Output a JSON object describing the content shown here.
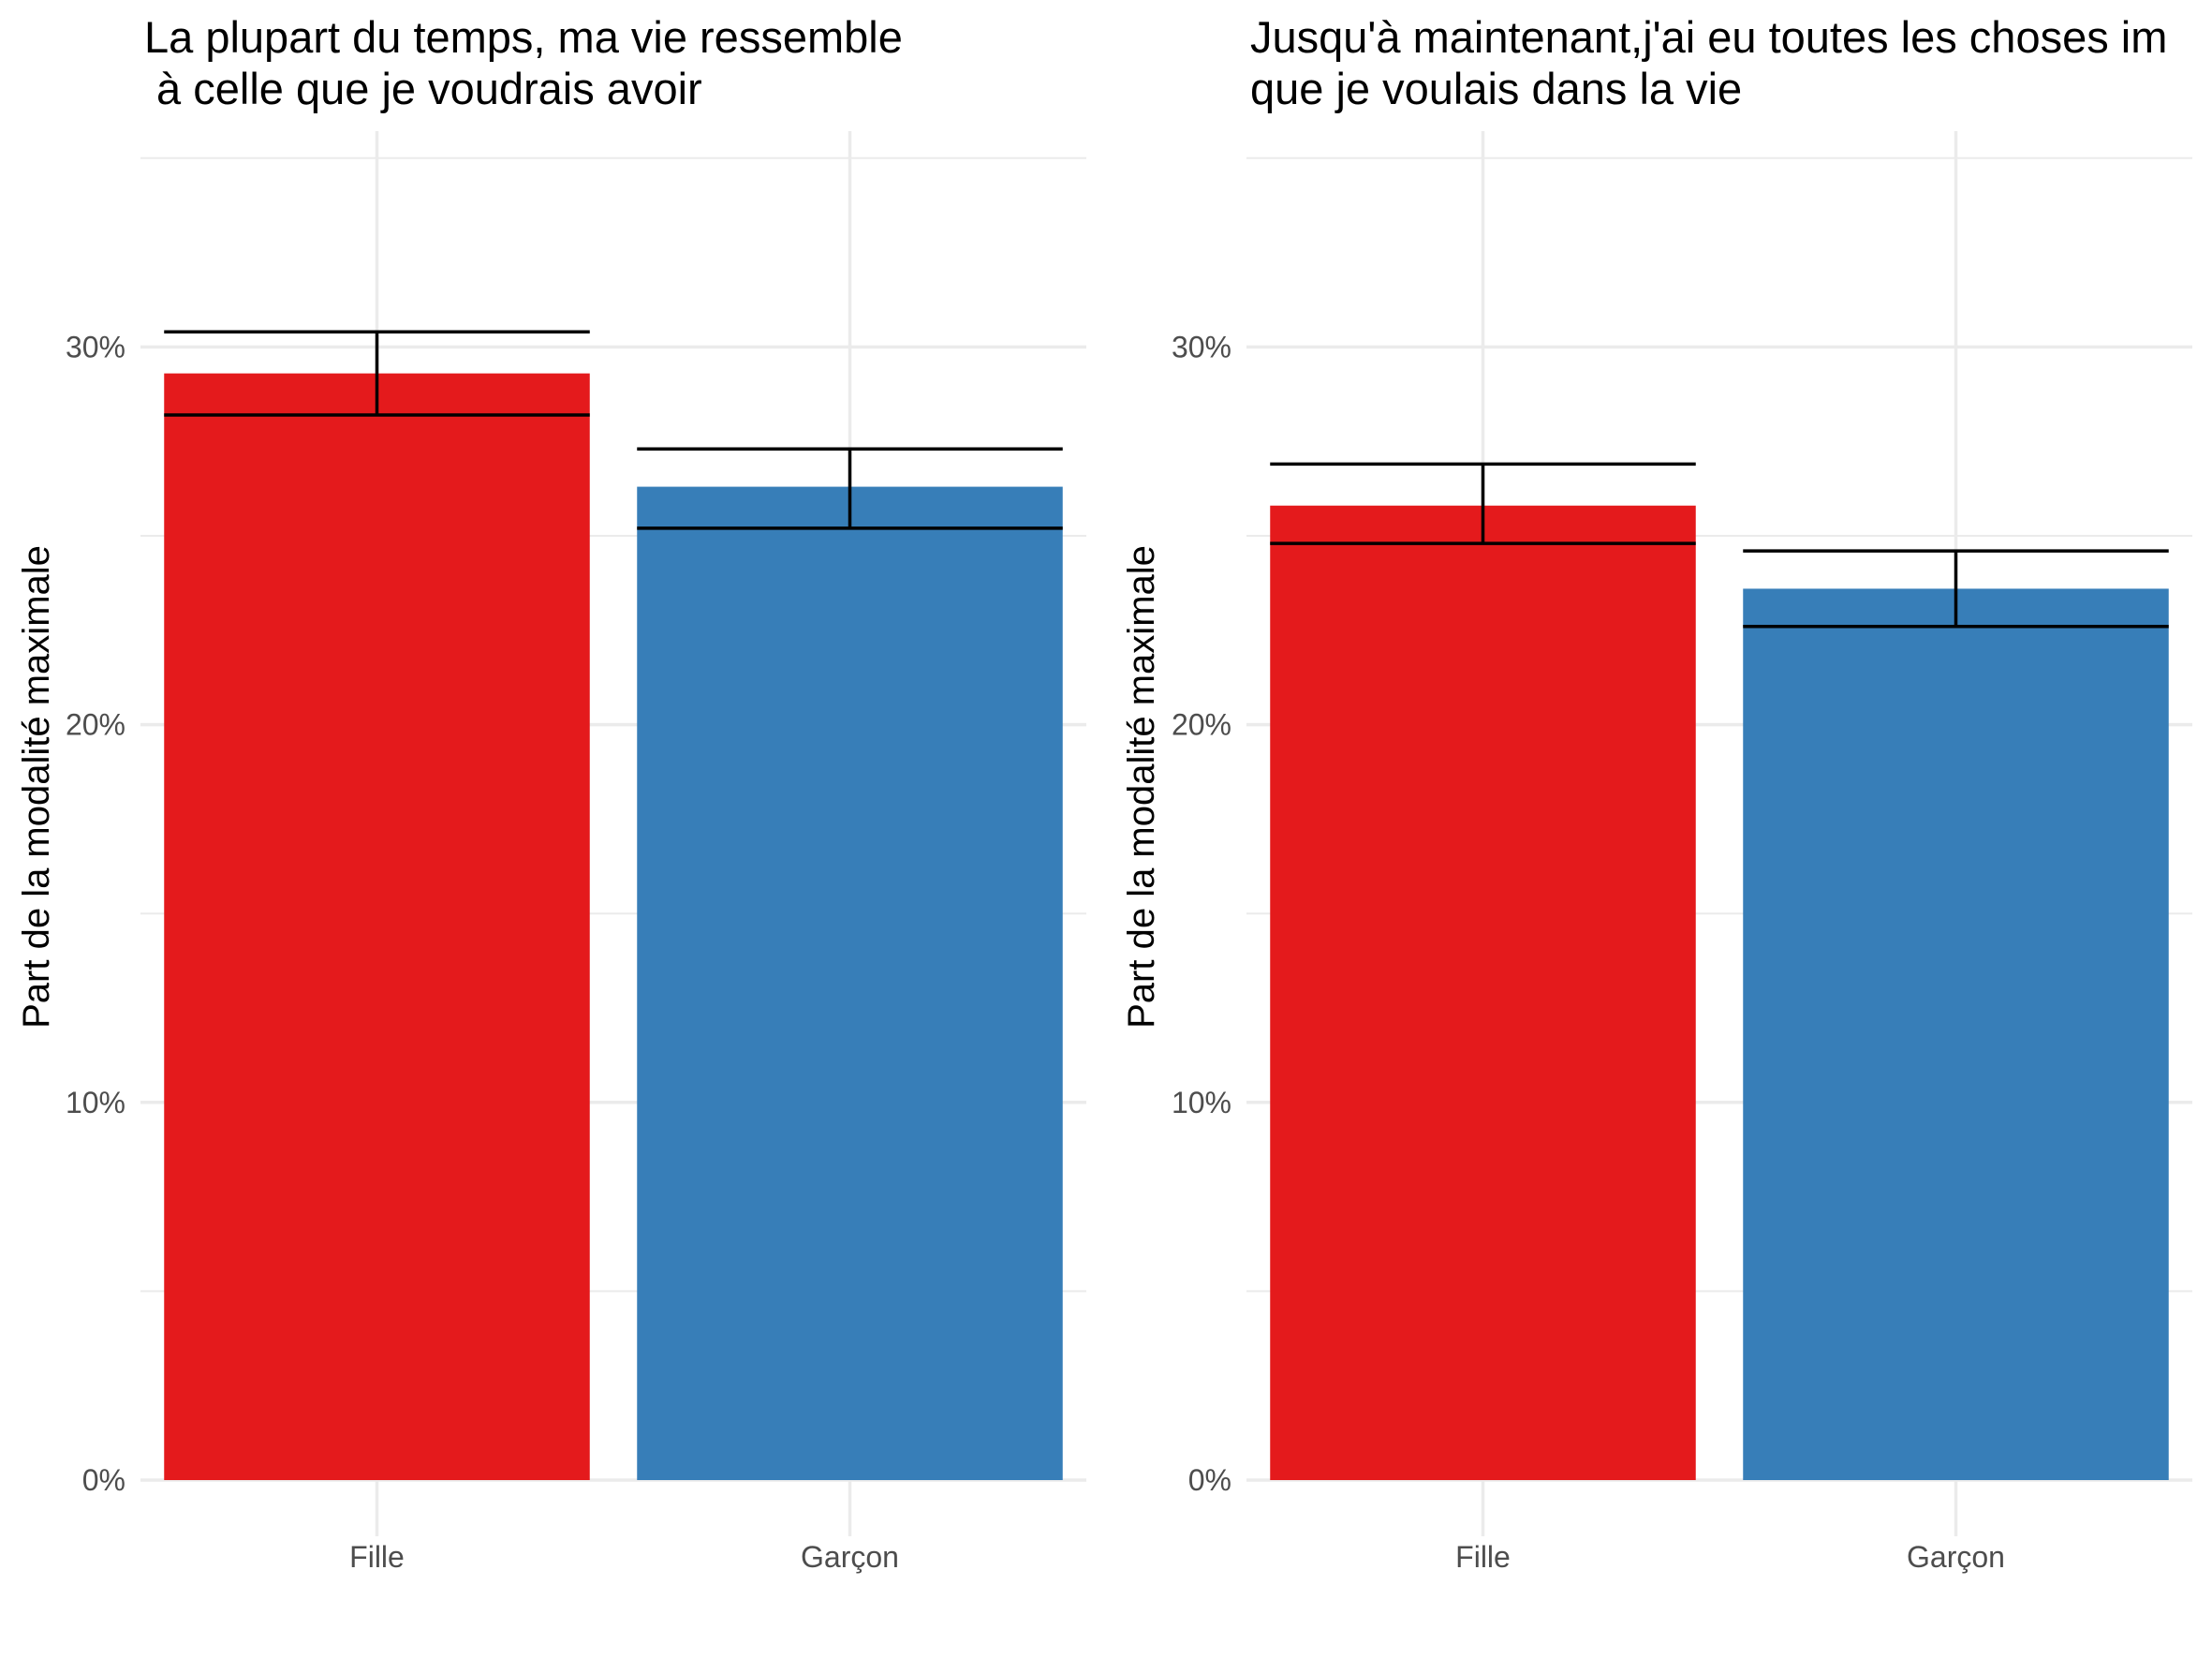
{
  "chart_data": [
    {
      "type": "bar",
      "title": "La plupart du temps, ma vie ressemble\n à celle que je voudrais avoir",
      "xlabel": "",
      "ylabel": "Part de la modalité maximale",
      "categories": [
        "Fille",
        "Garçon"
      ],
      "values": [
        29.3,
        26.3
      ],
      "error_bars": [
        [
          28.2,
          30.4
        ],
        [
          25.2,
          27.3
        ]
      ],
      "colors": [
        "#E41A1C",
        "#377EB8"
      ],
      "ylim": [
        0,
        35
      ],
      "yticks": [
        0,
        10,
        20,
        30
      ],
      "ytick_labels": [
        "0%",
        "10%",
        "20%",
        "30%"
      ],
      "grid": true
    },
    {
      "type": "bar",
      "title": "Jusqu'à maintenant,j'ai eu toutes les choses im\nque je voulais dans la vie",
      "xlabel": "",
      "ylabel": "Part de la modalité maximale",
      "categories": [
        "Fille",
        "Garçon"
      ],
      "values": [
        25.8,
        23.6
      ],
      "error_bars": [
        [
          24.8,
          26.9
        ],
        [
          22.6,
          24.6
        ]
      ],
      "colors": [
        "#E41A1C",
        "#377EB8"
      ],
      "ylim": [
        0,
        35
      ],
      "yticks": [
        0,
        10,
        20,
        30
      ],
      "ytick_labels": [
        "0%",
        "10%",
        "20%",
        "30%"
      ],
      "grid": true
    }
  ]
}
